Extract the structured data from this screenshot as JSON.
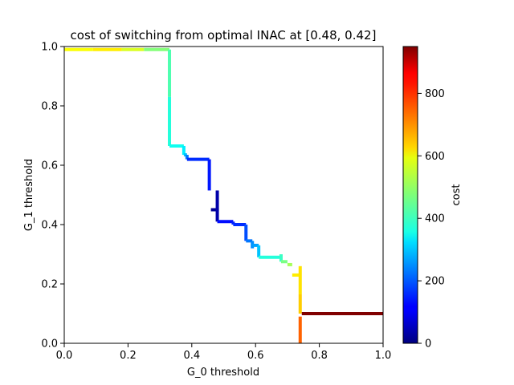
{
  "chart_data": {
    "type": "line",
    "title": "cost of switching from optimal INAC at [0.48, 0.42]",
    "xlabel": "G_0 threshold",
    "ylabel": "G_1 threshold",
    "xlim": [
      0,
      1
    ],
    "ylim": [
      0,
      1
    ],
    "xticks": [
      "0.0",
      "0.2",
      "0.4",
      "0.6",
      "0.8",
      "1.0"
    ],
    "yticks": [
      "0.0",
      "0.2",
      "0.4",
      "0.6",
      "0.8",
      "1.0"
    ],
    "grid": false,
    "colorbar": {
      "label": "cost",
      "range": [
        0,
        950
      ],
      "ticks": [
        "0",
        "200",
        "400",
        "600",
        "800"
      ],
      "colormap": "jet"
    },
    "segments": [
      {
        "x1": 0.0,
        "y1": 0.99,
        "x2": 0.09,
        "y2": 0.99,
        "cost": 590
      },
      {
        "x1": 0.09,
        "y1": 0.99,
        "x2": 0.18,
        "y2": 0.99,
        "cost": 610
      },
      {
        "x1": 0.18,
        "y1": 0.99,
        "x2": 0.25,
        "y2": 0.99,
        "cost": 560
      },
      {
        "x1": 0.25,
        "y1": 0.99,
        "x2": 0.33,
        "y2": 0.99,
        "cost": 480
      },
      {
        "x1": 0.33,
        "y1": 0.99,
        "x2": 0.33,
        "y2": 0.83,
        "cost": 430
      },
      {
        "x1": 0.33,
        "y1": 0.83,
        "x2": 0.33,
        "y2": 0.665,
        "cost": 390
      },
      {
        "x1": 0.33,
        "y1": 0.665,
        "x2": 0.375,
        "y2": 0.665,
        "cost": 370
      },
      {
        "x1": 0.375,
        "y1": 0.665,
        "x2": 0.375,
        "y2": 0.635,
        "cost": 340
      },
      {
        "x1": 0.375,
        "y1": 0.635,
        "x2": 0.385,
        "y2": 0.635,
        "cost": 300
      },
      {
        "x1": 0.385,
        "y1": 0.635,
        "x2": 0.385,
        "y2": 0.62,
        "cost": 230
      },
      {
        "x1": 0.385,
        "y1": 0.62,
        "x2": 0.455,
        "y2": 0.62,
        "cost": 160
      },
      {
        "x1": 0.455,
        "y1": 0.62,
        "x2": 0.455,
        "y2": 0.515,
        "cost": 140
      },
      {
        "x1": 0.46,
        "y1": 0.45,
        "x2": 0.485,
        "y2": 0.45,
        "cost": 20
      },
      {
        "x1": 0.48,
        "y1": 0.515,
        "x2": 0.48,
        "y2": 0.41,
        "cost": 40
      },
      {
        "x1": 0.48,
        "y1": 0.41,
        "x2": 0.53,
        "y2": 0.41,
        "cost": 130
      },
      {
        "x1": 0.53,
        "y1": 0.41,
        "x2": 0.53,
        "y2": 0.4,
        "cost": 150
      },
      {
        "x1": 0.53,
        "y1": 0.4,
        "x2": 0.57,
        "y2": 0.4,
        "cost": 160
      },
      {
        "x1": 0.57,
        "y1": 0.4,
        "x2": 0.57,
        "y2": 0.345,
        "cost": 190
      },
      {
        "x1": 0.57,
        "y1": 0.345,
        "x2": 0.59,
        "y2": 0.345,
        "cost": 230
      },
      {
        "x1": 0.59,
        "y1": 0.345,
        "x2": 0.59,
        "y2": 0.32,
        "cost": 250
      },
      {
        "x1": 0.59,
        "y1": 0.33,
        "x2": 0.61,
        "y2": 0.33,
        "cost": 270
      },
      {
        "x1": 0.61,
        "y1": 0.33,
        "x2": 0.61,
        "y2": 0.29,
        "cost": 300
      },
      {
        "x1": 0.61,
        "y1": 0.29,
        "x2": 0.68,
        "y2": 0.29,
        "cost": 390
      },
      {
        "x1": 0.68,
        "y1": 0.3,
        "x2": 0.68,
        "y2": 0.275,
        "cost": 410
      },
      {
        "x1": 0.68,
        "y1": 0.275,
        "x2": 0.7,
        "y2": 0.275,
        "cost": 470
      },
      {
        "x1": 0.7,
        "y1": 0.265,
        "x2": 0.715,
        "y2": 0.265,
        "cost": 510
      },
      {
        "x1": 0.715,
        "y1": 0.23,
        "x2": 0.74,
        "y2": 0.23,
        "cost": 610
      },
      {
        "x1": 0.74,
        "y1": 0.26,
        "x2": 0.74,
        "y2": 0.165,
        "cost": 620
      },
      {
        "x1": 0.74,
        "y1": 0.165,
        "x2": 0.74,
        "y2": 0.1,
        "cost": 640
      },
      {
        "x1": 0.74,
        "y1": 0.09,
        "x2": 0.74,
        "y2": 0.0,
        "cost": 740
      },
      {
        "x1": 0.745,
        "y1": 0.1,
        "x2": 1.0,
        "y2": 0.1,
        "cost": 950
      }
    ]
  }
}
